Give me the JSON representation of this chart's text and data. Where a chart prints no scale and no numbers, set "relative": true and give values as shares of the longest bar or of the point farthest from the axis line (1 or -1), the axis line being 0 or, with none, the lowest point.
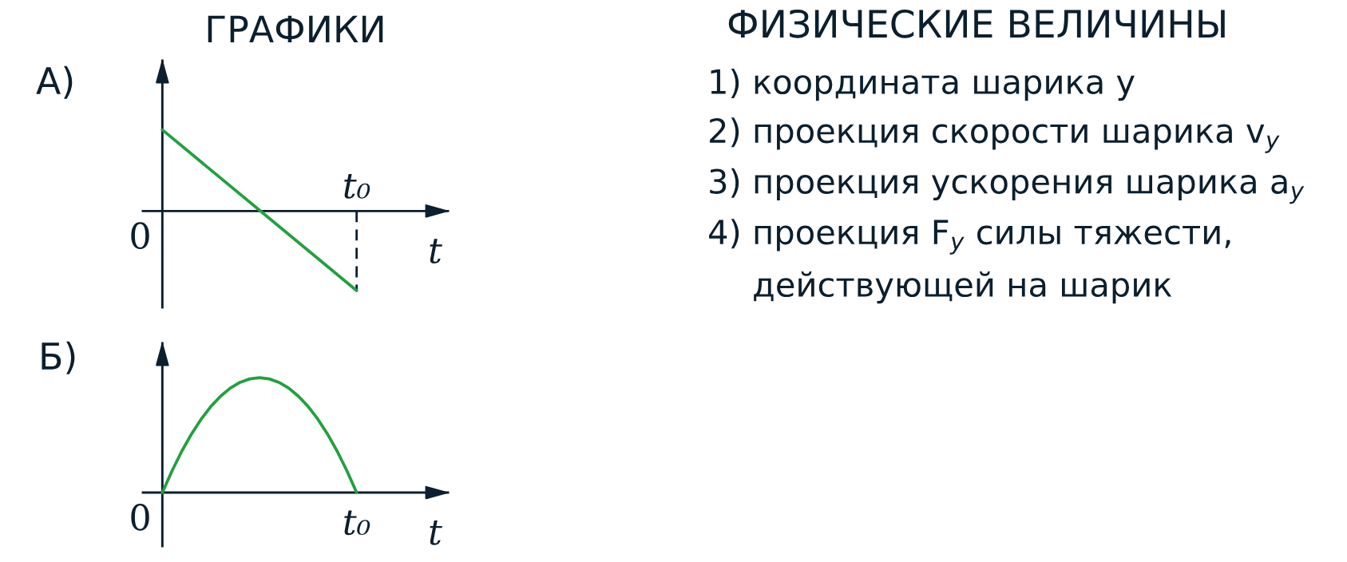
{
  "chart_data": [
    {
      "type": "line",
      "title": "ГРАФИКИ",
      "subtitle": "А)",
      "xlabel": "t",
      "categories": [
        null,
        null
      ],
      "relative": true,
      "series": [
        {
          "color": "#22a03f",
          "values": [
            1,
            -0.98
          ]
        }
      ],
      "annotations": [
        "0",
        "t₀"
      ]
    },
    {
      "type": "other",
      "title": "ФИЗИЧЕСКИЕ ВЕЛИЧИНЫ",
      "annotations": [
        "1) координата шарика y",
        "2) проекция скорости шарика v$_{y}$",
        "3) проекция ускорения шарика a$_{y}$",
        "4) проекция F$_{y}$ силы тяжести,\nдействующей на шарик"
      ]
    },
    {
      "type": "line",
      "subtitle": "Б)",
      "xlabel": "t",
      "categories": [
        null,
        null,
        null,
        null,
        null,
        null,
        null,
        null,
        null,
        null,
        null,
        null,
        null,
        null,
        null,
        null,
        null,
        null,
        null,
        null,
        null
      ],
      "relative": true,
      "series": [
        {
          "color": "#22a03f",
          "values": [
            0,
            0.19,
            0.36,
            0.51,
            0.64,
            0.75,
            0.84,
            0.91,
            0.96,
            0.99,
            1,
            0.99,
            0.96,
            0.91,
            0.84,
            0.75,
            0.64,
            0.51,
            0.36,
            0.19,
            0
          ]
        }
      ],
      "annotations": [
        "0",
        "t₀"
      ]
    }
  ]
}
